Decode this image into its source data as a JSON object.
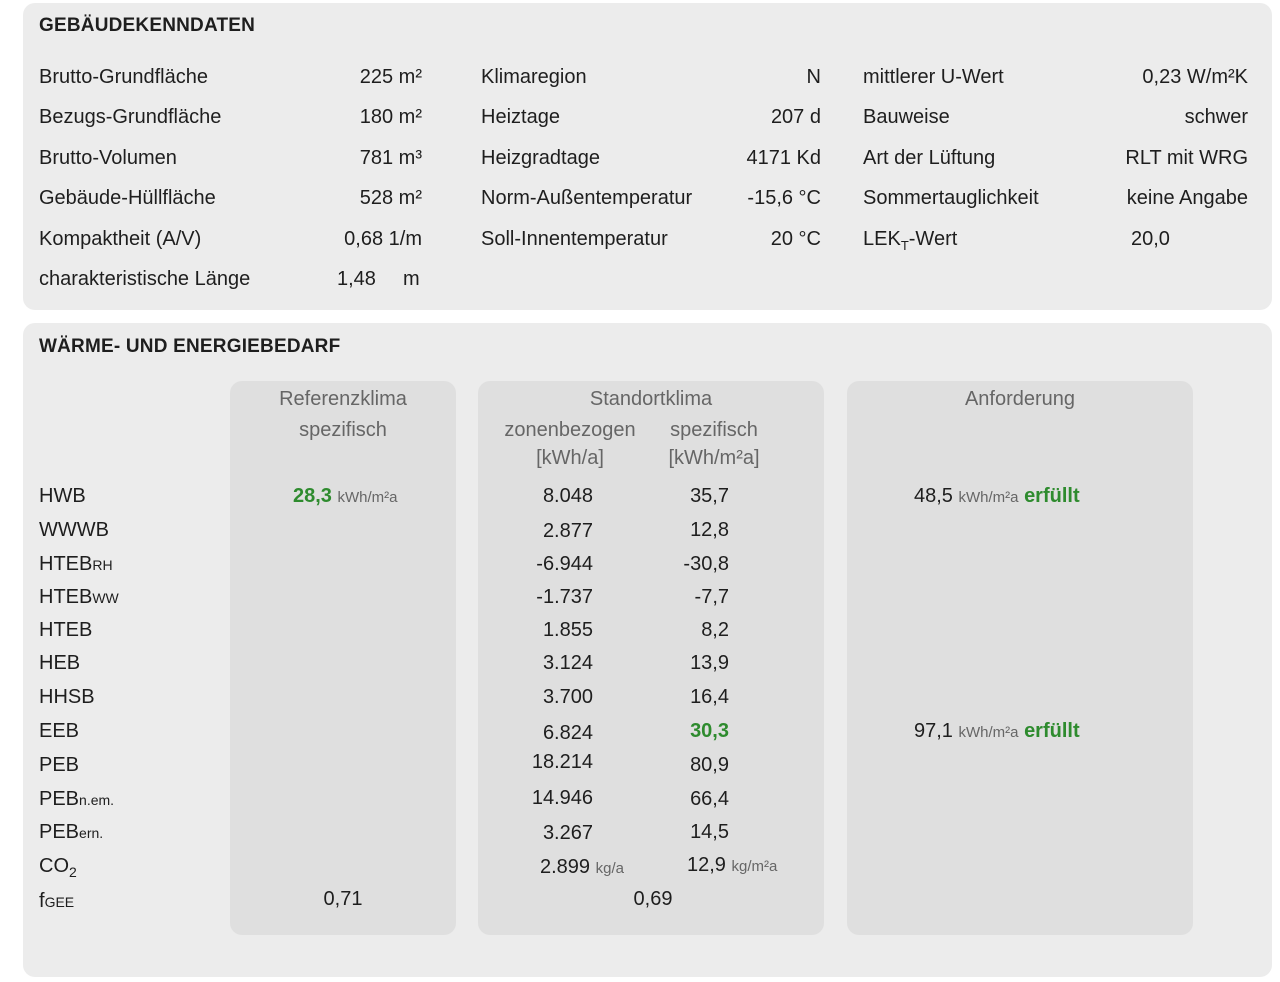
{
  "sec1": {
    "title": "GEBÄUDEKENNDATEN",
    "col1": [
      {
        "label": "Brutto-Grundfläche",
        "value": "225 m²"
      },
      {
        "label": "Bezugs-Grundfläche",
        "value": "180 m²"
      },
      {
        "label": "Brutto-Volumen",
        "value": "781 m³"
      },
      {
        "label": "Gebäude-Hüllfläche",
        "value": "528 m²"
      },
      {
        "label": "Kompaktheit (A/V)",
        "value": "0,68 1/m"
      },
      {
        "label": "charakteristische Länge",
        "value": "1,48",
        "unit": "m"
      }
    ],
    "col2": [
      {
        "label": "Klimaregion",
        "value": "N"
      },
      {
        "label": "Heiztage",
        "value": "207 d"
      },
      {
        "label": "Heizgradtage",
        "value": "4171 Kd"
      },
      {
        "label": "Norm-Außentemperatur",
        "value": "-15,6 °C"
      },
      {
        "label": "Soll-Innentemperatur",
        "value": "20 °C"
      }
    ],
    "col3": [
      {
        "label": "mittlerer U-Wert",
        "value": "0,23 W/m²K"
      },
      {
        "label": "Bauweise",
        "value": "schwer"
      },
      {
        "label": "Art der Lüftung",
        "value": "RLT mit WRG"
      },
      {
        "label": "Sommertauglichkeit",
        "value": "keine Angabe"
      },
      {
        "label_main": "LEK",
        "label_sub": "T",
        "label_rest": "-Wert",
        "value": "20,0"
      }
    ]
  },
  "sec2": {
    "title": "WÄRME- UND ENERGIEBEDARF",
    "headers": {
      "ref_title": "Referenzklima",
      "ref_sub": "spezifisch",
      "std_title": "Standortklima",
      "std_zone": "zonenbezogen",
      "std_zone_unit": "[kWh/a]",
      "std_spec": "spezifisch",
      "std_spec_unit": "[kWh/m²a]",
      "req_title": "Anforderung"
    },
    "rows": [
      {
        "label": "HWB",
        "sub": "",
        "ref": "28,3",
        "ref_unit": "kWh/m²a",
        "zone": "8.048",
        "spec": "35,7",
        "req": "48,5",
        "req_unit": "kWh/m²a",
        "req_status": "erfüllt"
      },
      {
        "label": "WWWB",
        "sub": "",
        "zone": "2.877",
        "spec": "12,8"
      },
      {
        "label": "HTEB",
        "sub": "RH",
        "zone": "-6.944",
        "spec": "-30,8"
      },
      {
        "label": "HTEB",
        "sub": "WW",
        "zone": "-1.737",
        "spec": "-7,7"
      },
      {
        "label": "HTEB",
        "sub": "",
        "zone": "1.855",
        "spec": "8,2"
      },
      {
        "label": "HEB",
        "sub": "",
        "zone": "3.124",
        "spec": "13,9"
      },
      {
        "label": "HHSB",
        "sub": "",
        "zone": "3.700",
        "spec": "16,4"
      },
      {
        "label": "EEB",
        "sub": "",
        "zone": "6.824",
        "spec": "30,3",
        "req": "97,1",
        "req_unit": "kWh/m²a",
        "req_status": "erfüllt"
      },
      {
        "label": "PEB",
        "sub": "",
        "zone": "18.214",
        "spec": "80,9"
      },
      {
        "label": "PEB",
        "sub": "n.em.",
        "zone": "14.946",
        "spec": "66,4"
      },
      {
        "label": "PEB",
        "sub": "ern.",
        "zone": "3.267",
        "spec": "14,5"
      },
      {
        "label": "CO",
        "sub": "2",
        "zone": "2.899",
        "zone_unit": "kg/a",
        "spec": "12,9",
        "spec_unit": "kg/m²a"
      },
      {
        "label": "f",
        "sub": "GEE",
        "ref": "0,71",
        "std_merged": "0,69"
      }
    ],
    "colors": {
      "green": "#2e8b2e",
      "panel": "#ececec",
      "column": "#dfdfdf"
    }
  }
}
